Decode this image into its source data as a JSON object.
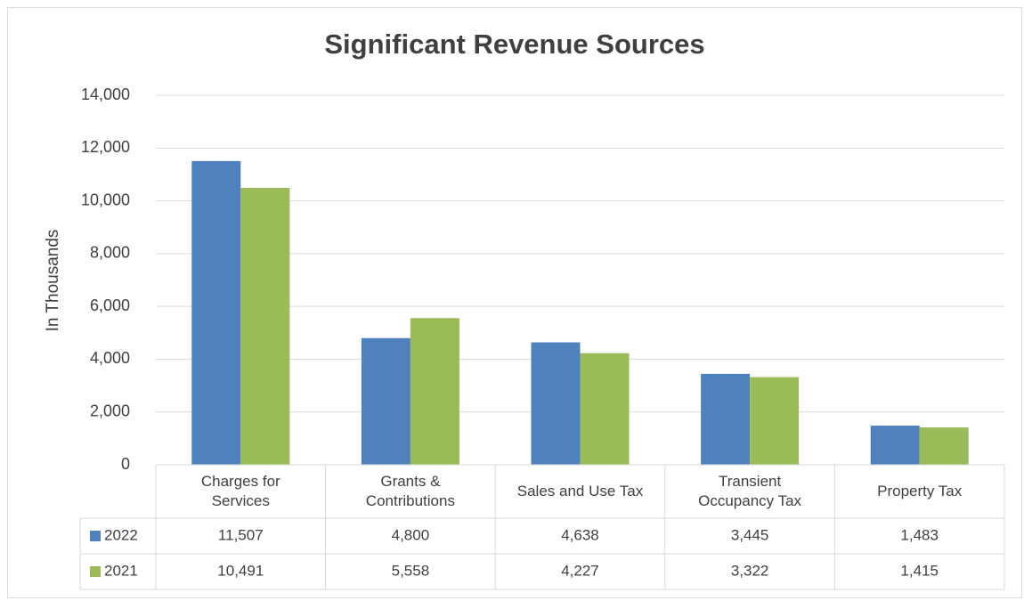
{
  "chart_data": {
    "type": "bar",
    "title": "Significant Revenue Sources",
    "y_label": "In Thousands",
    "categories": [
      "Charges for Services",
      "Grants & Contributions",
      "Sales and Use Tax",
      "Transient Occupancy Tax",
      "Property Tax"
    ],
    "series": [
      {
        "name": "2022",
        "color": "#4f81bd",
        "values": [
          11507,
          4800,
          4638,
          3445,
          1483
        ],
        "value_labels": [
          "11,507",
          "4,800",
          "4,638",
          "3,445",
          "1,483"
        ]
      },
      {
        "name": "2021",
        "color": "#9bbb59",
        "values": [
          10491,
          5558,
          4227,
          3322,
          1415
        ],
        "value_labels": [
          "10,491",
          "5,558",
          "4,227",
          "3,322",
          "1,415"
        ]
      }
    ],
    "ylim": [
      0,
      14000
    ],
    "yticks": [
      0,
      {
        "value": 2000,
        "label": "2,000"
      },
      {
        "value": 4000,
        "label": "4,000"
      },
      {
        "value": 6000,
        "label": "6,000"
      },
      {
        "value": 8000,
        "label": "8,000"
      },
      {
        "value": 10000,
        "label": "10,000"
      },
      {
        "value": 12000,
        "label": "12,000"
      },
      {
        "value": 14000,
        "label": "14,000"
      }
    ],
    "grid": true
  }
}
